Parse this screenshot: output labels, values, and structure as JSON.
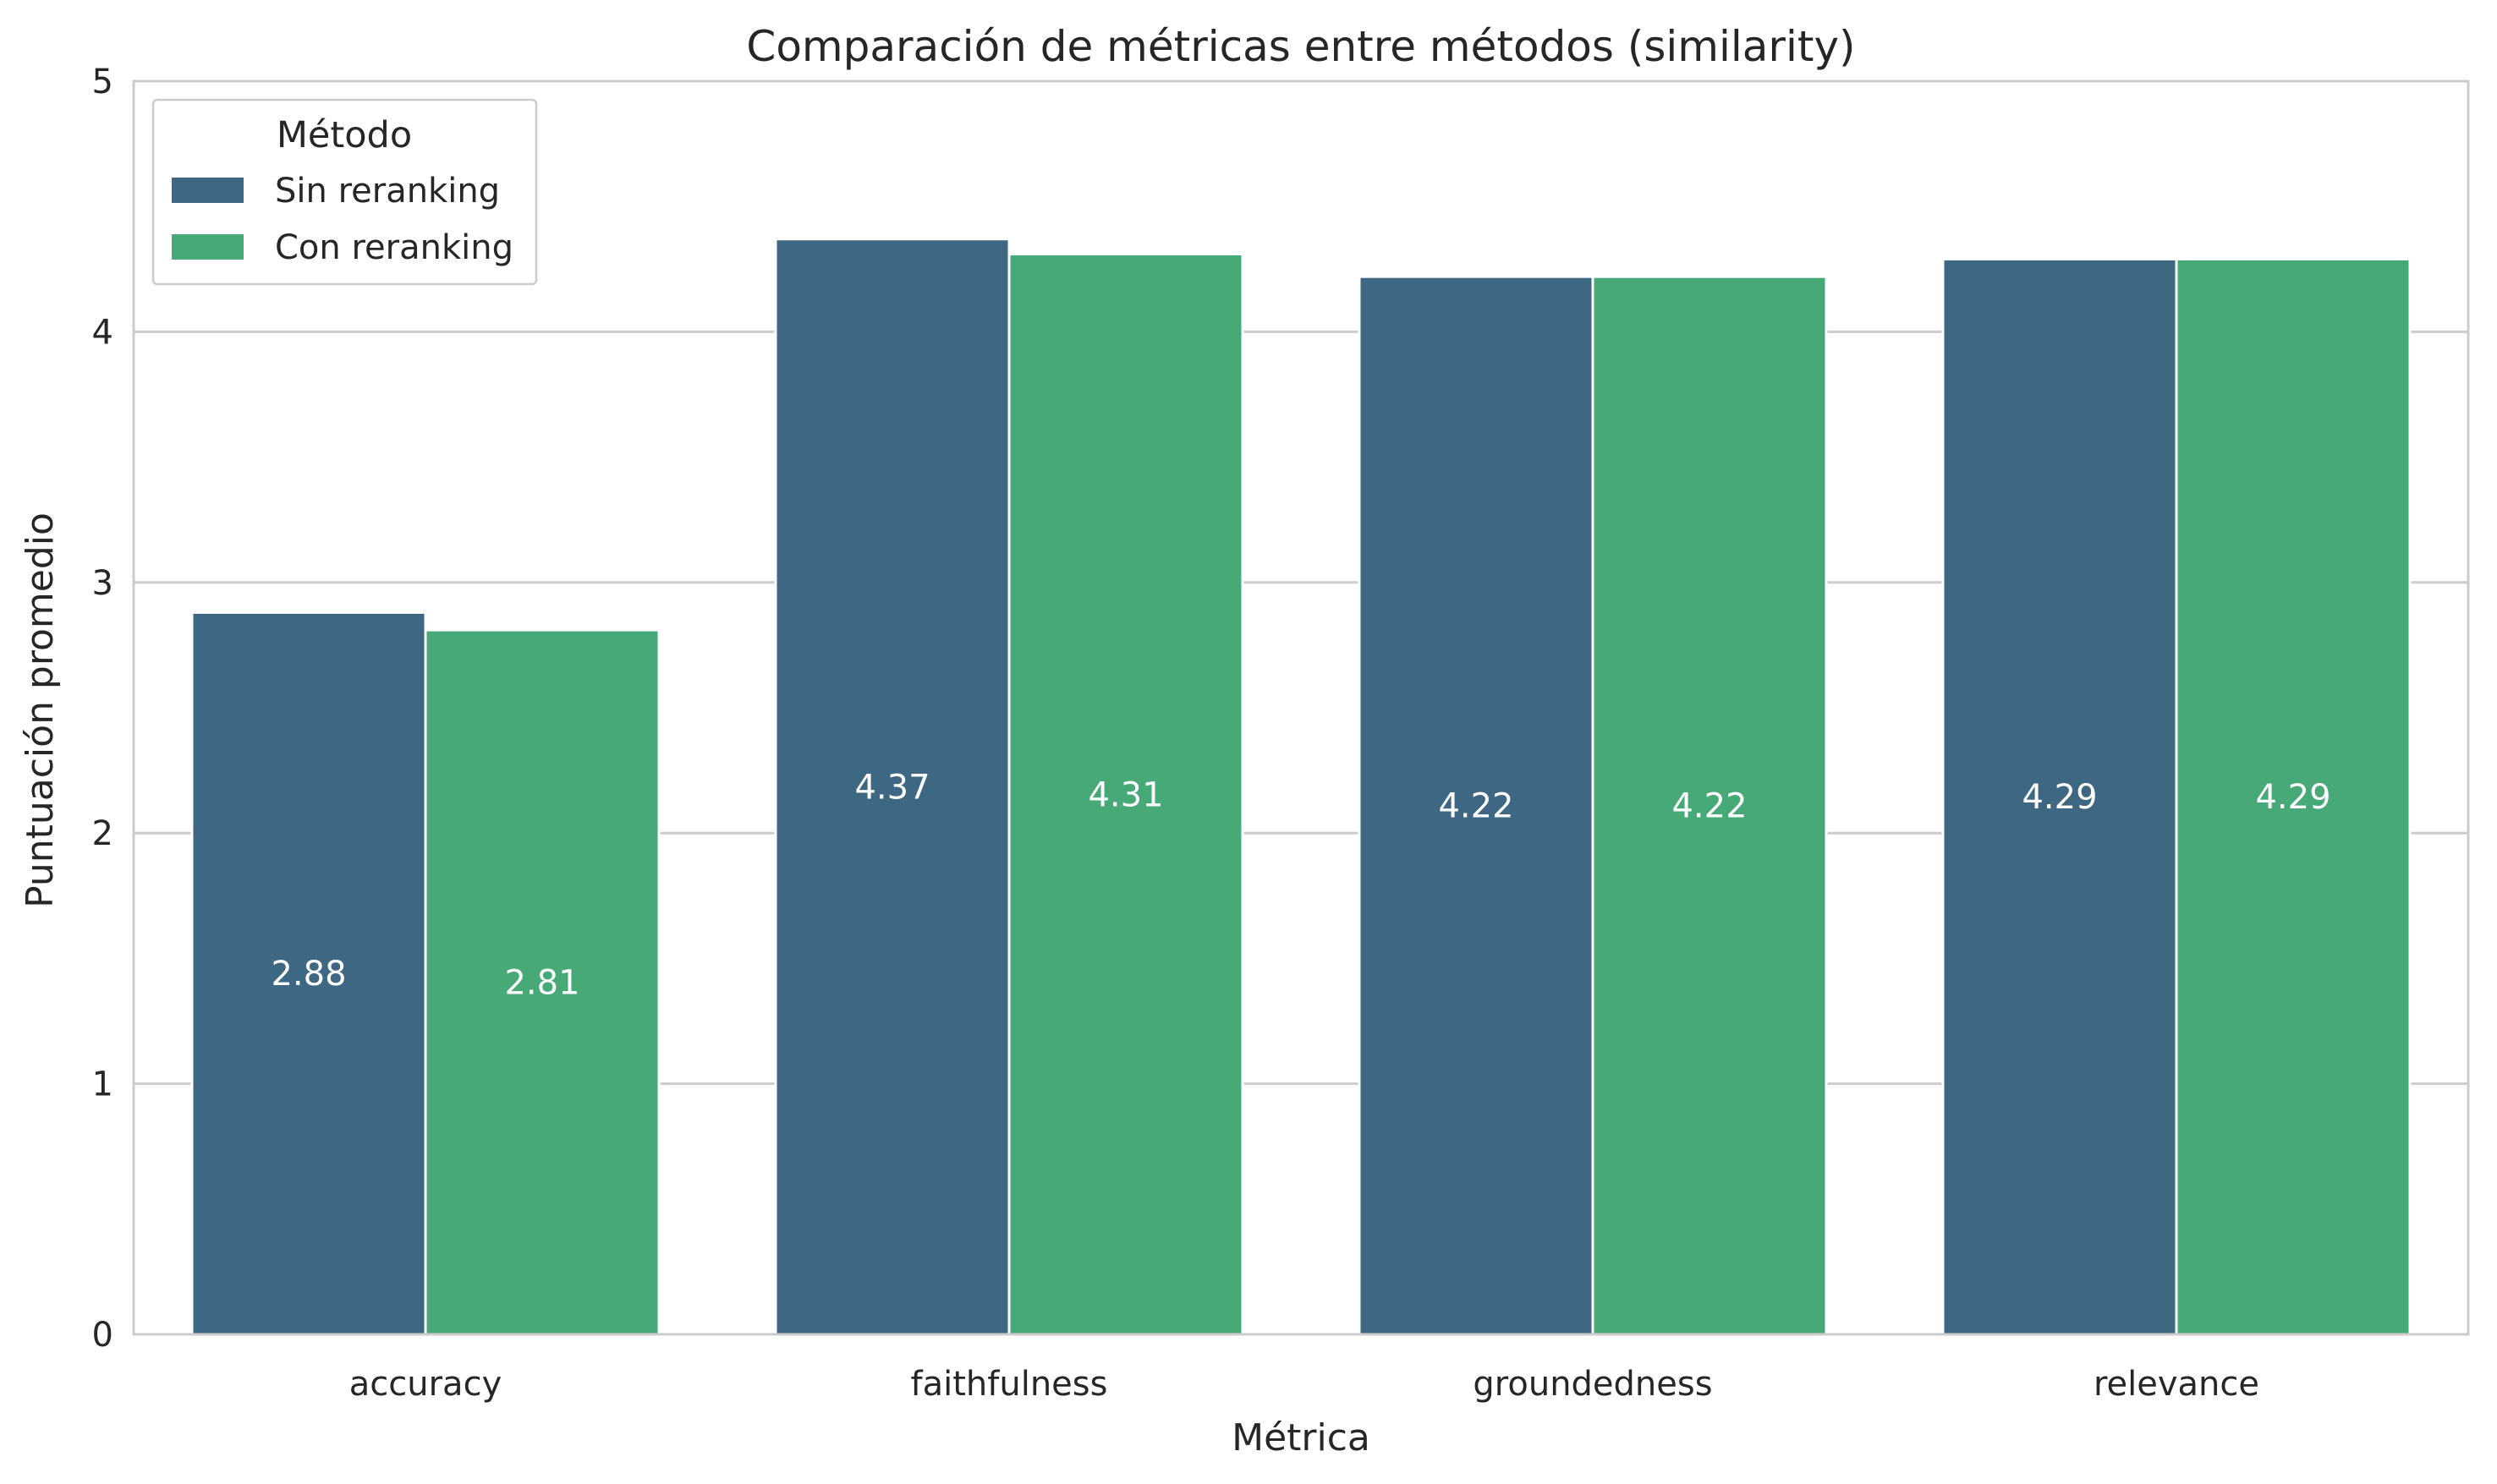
{
  "chart_data": {
    "type": "bar",
    "title": "Comparación de métricas entre métodos (similarity)",
    "xlabel": "Métrica",
    "ylabel": "Puntuación promedio",
    "categories": [
      "accuracy",
      "faithfulness",
      "groundedness",
      "relevance"
    ],
    "series": [
      {
        "name": "Sin reranking",
        "color": "#3e6783",
        "values": [
          2.88,
          4.37,
          4.22,
          4.29
        ]
      },
      {
        "name": "Con reranking",
        "color": "#47a978",
        "values": [
          2.81,
          4.31,
          4.22,
          4.29
        ]
      }
    ],
    "value_labels": [
      [
        "2.88",
        "4.37",
        "4.22",
        "4.29"
      ],
      [
        "2.81",
        "4.31",
        "4.22",
        "4.29"
      ]
    ],
    "ylim": [
      0,
      5
    ],
    "yticks": [
      "0",
      "1",
      "2",
      "3",
      "4",
      "5"
    ],
    "grid": true,
    "legend": {
      "title": "Método",
      "placement": "top-left"
    }
  }
}
